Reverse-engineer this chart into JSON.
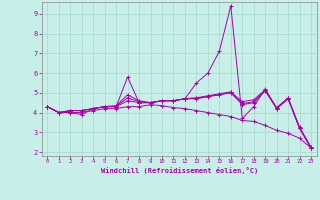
{
  "xlabel": "Windchill (Refroidissement éolien,°C)",
  "bg_color": "#c8eee8",
  "grid_color": "#a8d8cc",
  "line_color": "#aa00aa",
  "xlim": [
    -0.5,
    23.5
  ],
  "ylim": [
    1.8,
    9.6
  ],
  "xticks": [
    0,
    1,
    2,
    3,
    4,
    5,
    6,
    7,
    8,
    9,
    10,
    11,
    12,
    13,
    14,
    15,
    16,
    17,
    18,
    19,
    20,
    21,
    22,
    23
  ],
  "yticks": [
    2,
    3,
    4,
    5,
    6,
    7,
    8,
    9
  ],
  "series": [
    [
      4.3,
      4.0,
      4.0,
      3.9,
      4.2,
      4.3,
      4.3,
      5.8,
      4.5,
      4.5,
      4.6,
      4.6,
      4.7,
      5.5,
      6.0,
      7.1,
      9.4,
      3.7,
      4.3,
      5.2,
      4.2,
      4.7,
      3.2,
      2.2
    ],
    [
      4.3,
      4.0,
      4.1,
      4.1,
      4.2,
      4.3,
      4.35,
      4.9,
      4.6,
      4.5,
      4.6,
      4.6,
      4.7,
      4.75,
      4.85,
      4.95,
      5.05,
      4.55,
      4.65,
      5.15,
      4.25,
      4.75,
      3.25,
      2.25
    ],
    [
      4.3,
      4.0,
      4.1,
      4.1,
      4.2,
      4.3,
      4.32,
      4.75,
      4.55,
      4.5,
      4.6,
      4.6,
      4.7,
      4.72,
      4.82,
      4.92,
      5.02,
      4.45,
      4.55,
      5.12,
      4.22,
      4.72,
      3.22,
      2.22
    ],
    [
      4.3,
      4.0,
      4.1,
      4.1,
      4.2,
      4.3,
      4.3,
      4.6,
      4.5,
      4.5,
      4.6,
      4.6,
      4.7,
      4.7,
      4.8,
      4.9,
      5.0,
      4.4,
      4.5,
      5.1,
      4.2,
      4.7,
      3.2,
      2.2
    ],
    [
      4.3,
      4.0,
      4.0,
      4.0,
      4.1,
      4.2,
      4.2,
      4.3,
      4.3,
      4.4,
      4.35,
      4.25,
      4.2,
      4.1,
      4.0,
      3.9,
      3.8,
      3.6,
      3.55,
      3.35,
      3.1,
      2.95,
      2.7,
      2.2
    ]
  ]
}
